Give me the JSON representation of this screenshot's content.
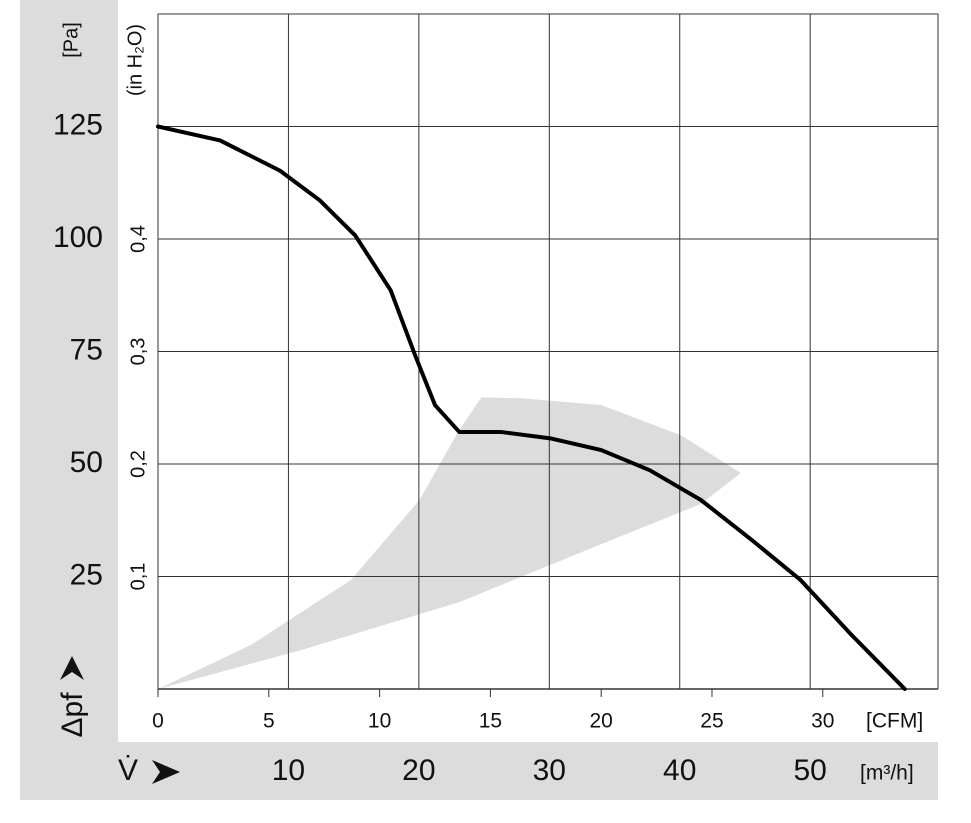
{
  "chart_data": {
    "type": "line",
    "y_unit": "[Pa]",
    "y2_unit": "(in H₂O)",
    "y_symbol": "Δpf",
    "x_unit": "[CFM]",
    "x2_unit": "[m³/h]",
    "x_symbol": "V̇",
    "x": [
      0,
      2.8,
      5.5,
      7.3,
      8.9,
      10.5,
      11.6,
      12.5,
      13.6,
      15.5,
      17.7,
      20,
      22.2,
      24.5,
      26.8,
      29,
      31.3,
      33.7
    ],
    "values": [
      125,
      121.9,
      115.2,
      108.6,
      100.8,
      88.6,
      74.2,
      63.1,
      57.1,
      57.1,
      55.7,
      53.1,
      48.6,
      42,
      33.1,
      24.2,
      12,
      0
    ],
    "color": "#000000",
    "range_x": [
      0,
      4.2,
      8.7,
      11.8,
      13.6,
      14.6,
      16.4,
      20,
      23.6,
      26.3,
      24.5,
      20,
      13.6,
      6.5,
      0
    ],
    "range_y": [
      0,
      9.8,
      24.2,
      42,
      57.6,
      64.8,
      64.6,
      63.1,
      56.4,
      48,
      41.1,
      32.2,
      19.3,
      8.7,
      0
    ],
    "range_color": "#dcdcdc",
    "xlim": [
      0,
      35.2
    ],
    "xticks": [
      0,
      5,
      10,
      15,
      20,
      25,
      30
    ],
    "x2lim": [
      0,
      59.8
    ],
    "x2ticks": [
      10,
      20,
      30,
      40,
      50
    ],
    "ylim": [
      0,
      150
    ],
    "yticks": [
      25,
      50,
      75,
      100,
      125
    ],
    "y2lim": [
      0,
      0.6
    ],
    "y2ticks": [
      {
        "value": 0.1,
        "label": "0,1"
      },
      {
        "value": 0.2,
        "label": "0,2"
      },
      {
        "value": 0.3,
        "label": "0,3"
      },
      {
        "value": 0.4,
        "label": "0,4"
      }
    ],
    "grid": true
  }
}
